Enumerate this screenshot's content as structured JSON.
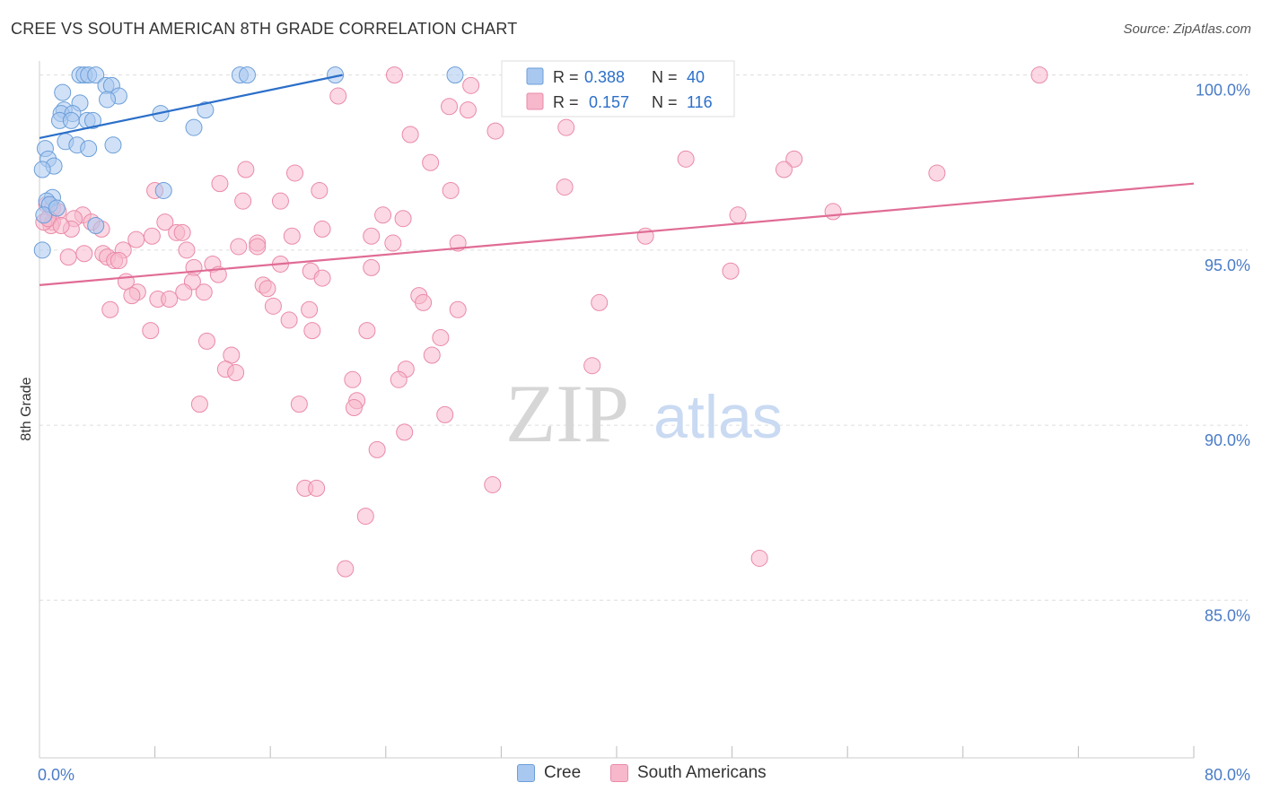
{
  "header": {
    "title": "CREE VS SOUTH AMERICAN 8TH GRADE CORRELATION CHART",
    "source": "Source: ZipAtlas.com"
  },
  "watermark": {
    "zip": "ZIP",
    "atlas": "atlas"
  },
  "colors": {
    "cree_fill": "#a9c8f0",
    "cree_stroke": "#6b9ed8",
    "cree_line": "#2b6fc9",
    "sa_fill": "#f7b8cc",
    "sa_stroke": "#ea8aa8",
    "sa_line": "#e06c95",
    "tick_text": "#4a7cc7",
    "grid": "#dddddd"
  },
  "stats_legend": {
    "cree": {
      "r_label": "R = ",
      "r_value": "0.388",
      "n_label": "N = ",
      "n_value": "40"
    },
    "sa": {
      "r_label": "R = ",
      "r_value": "0.157",
      "n_label": "N = ",
      "n_value": "116"
    }
  },
  "bottom_legend": {
    "cree": "Cree",
    "sa": "South Americans"
  },
  "chart_data": {
    "type": "scatter",
    "title": "CREE VS SOUTH AMERICAN 8TH GRADE CORRELATION CHART",
    "xlabel": "",
    "ylabel": "8th Grade",
    "xlim": [
      0,
      80
    ],
    "ylim": [
      80.5,
      100.4
    ],
    "x_tick_labels": [
      "0.0%",
      "80.0%"
    ],
    "y_ticks": [
      85,
      90,
      95,
      100
    ],
    "y_tick_labels": [
      "85.0%",
      "90.0%",
      "95.0%",
      "100.0%"
    ],
    "grid": true,
    "series": [
      {
        "name": "Cree",
        "R": 0.388,
        "N": 40,
        "trend": [
          [
            0,
            98.2
          ],
          [
            21,
            100.0
          ]
        ],
        "points": [
          [
            2.8,
            100
          ],
          [
            3.1,
            100
          ],
          [
            3.4,
            100
          ],
          [
            3.9,
            100
          ],
          [
            13.9,
            100
          ],
          [
            14.4,
            100
          ],
          [
            20.5,
            100
          ],
          [
            28.8,
            100
          ],
          [
            4.6,
            99.7
          ],
          [
            5.0,
            99.7
          ],
          [
            1.6,
            99.5
          ],
          [
            5.5,
            99.4
          ],
          [
            4.7,
            99.3
          ],
          [
            2.8,
            99.2
          ],
          [
            1.7,
            99.0
          ],
          [
            1.5,
            98.9
          ],
          [
            11.5,
            99.0
          ],
          [
            8.4,
            98.9
          ],
          [
            2.3,
            98.9
          ],
          [
            1.4,
            98.7
          ],
          [
            2.2,
            98.7
          ],
          [
            3.3,
            98.7
          ],
          [
            3.7,
            98.7
          ],
          [
            10.7,
            98.5
          ],
          [
            1.8,
            98.1
          ],
          [
            2.6,
            98.0
          ],
          [
            3.4,
            97.9
          ],
          [
            5.1,
            98.0
          ],
          [
            0.4,
            97.9
          ],
          [
            0.6,
            97.6
          ],
          [
            1.0,
            97.4
          ],
          [
            0.2,
            97.3
          ],
          [
            0.9,
            96.5
          ],
          [
            8.6,
            96.7
          ],
          [
            0.5,
            96.4
          ],
          [
            0.7,
            96.3
          ],
          [
            3.9,
            95.7
          ],
          [
            0.2,
            95.0
          ],
          [
            0.3,
            96.0
          ],
          [
            1.2,
            96.2
          ]
        ]
      },
      {
        "name": "South Americans",
        "R": 0.157,
        "N": 116,
        "trend": [
          [
            0,
            94.0
          ],
          [
            80,
            96.9
          ]
        ],
        "points": [
          [
            24.6,
            100
          ],
          [
            32.6,
            100
          ],
          [
            69.3,
            100
          ],
          [
            29.9,
            99.7
          ],
          [
            34.7,
            99.8
          ],
          [
            20.7,
            99.4
          ],
          [
            28.4,
            99.1
          ],
          [
            29.7,
            99.0
          ],
          [
            31.6,
            98.4
          ],
          [
            36.5,
            98.5
          ],
          [
            25.7,
            98.3
          ],
          [
            52.3,
            97.6
          ],
          [
            27.1,
            97.5
          ],
          [
            51.6,
            97.3
          ],
          [
            14.3,
            97.3
          ],
          [
            17.7,
            97.2
          ],
          [
            62.2,
            97.2
          ],
          [
            12.5,
            96.9
          ],
          [
            19.4,
            96.7
          ],
          [
            28.5,
            96.7
          ],
          [
            8.0,
            96.7
          ],
          [
            14.1,
            96.4
          ],
          [
            16.7,
            96.4
          ],
          [
            0.5,
            96.3
          ],
          [
            0.9,
            96.2
          ],
          [
            1.3,
            96.1
          ],
          [
            3.0,
            96.0
          ],
          [
            23.8,
            96.0
          ],
          [
            25.2,
            95.9
          ],
          [
            48.4,
            96.0
          ],
          [
            2.4,
            95.9
          ],
          [
            0.9,
            95.8
          ],
          [
            3.6,
            95.8
          ],
          [
            8.7,
            95.8
          ],
          [
            0.8,
            95.7
          ],
          [
            2.2,
            95.6
          ],
          [
            19.6,
            95.6
          ],
          [
            9.5,
            95.5
          ],
          [
            9.9,
            95.5
          ],
          [
            17.5,
            95.4
          ],
          [
            23.0,
            95.4
          ],
          [
            42.0,
            95.4
          ],
          [
            6.7,
            95.3
          ],
          [
            15.1,
            95.2
          ],
          [
            24.5,
            95.2
          ],
          [
            29.0,
            95.2
          ],
          [
            13.8,
            95.1
          ],
          [
            15.1,
            95.1
          ],
          [
            10.2,
            95.0
          ],
          [
            5.8,
            95.0
          ],
          [
            4.4,
            94.9
          ],
          [
            4.7,
            94.8
          ],
          [
            2.0,
            94.8
          ],
          [
            5.2,
            94.7
          ],
          [
            5.5,
            94.7
          ],
          [
            12.0,
            94.6
          ],
          [
            16.7,
            94.6
          ],
          [
            23.0,
            94.5
          ],
          [
            10.7,
            94.5
          ],
          [
            18.8,
            94.4
          ],
          [
            12.4,
            94.3
          ],
          [
            19.6,
            94.2
          ],
          [
            6.0,
            94.1
          ],
          [
            10.6,
            94.1
          ],
          [
            15.5,
            94.0
          ],
          [
            15.8,
            93.9
          ],
          [
            6.8,
            93.8
          ],
          [
            6.4,
            93.7
          ],
          [
            10.0,
            93.8
          ],
          [
            11.4,
            93.8
          ],
          [
            26.3,
            93.7
          ],
          [
            8.2,
            93.6
          ],
          [
            9.0,
            93.6
          ],
          [
            26.6,
            93.5
          ],
          [
            38.8,
            93.5
          ],
          [
            16.2,
            93.4
          ],
          [
            4.9,
            93.3
          ],
          [
            18.7,
            93.3
          ],
          [
            29.0,
            93.3
          ],
          [
            17.3,
            93.0
          ],
          [
            18.9,
            92.7
          ],
          [
            22.7,
            92.7
          ],
          [
            7.7,
            92.7
          ],
          [
            27.8,
            92.5
          ],
          [
            11.6,
            92.4
          ],
          [
            13.3,
            92.0
          ],
          [
            27.2,
            92.0
          ],
          [
            12.9,
            91.6
          ],
          [
            13.6,
            91.5
          ],
          [
            25.4,
            91.6
          ],
          [
            38.3,
            91.7
          ],
          [
            21.7,
            91.3
          ],
          [
            24.9,
            91.3
          ],
          [
            22.0,
            90.7
          ],
          [
            11.1,
            90.6
          ],
          [
            18.0,
            90.6
          ],
          [
            21.8,
            90.5
          ],
          [
            28.1,
            90.3
          ],
          [
            25.3,
            89.8
          ],
          [
            23.4,
            89.3
          ],
          [
            31.4,
            88.3
          ],
          [
            18.4,
            88.2
          ],
          [
            19.2,
            88.2
          ],
          [
            22.6,
            87.4
          ],
          [
            49.9,
            86.2
          ],
          [
            21.2,
            85.9
          ],
          [
            0.3,
            95.8
          ],
          [
            0.6,
            95.9
          ],
          [
            1.5,
            95.7
          ],
          [
            4.3,
            95.6
          ],
          [
            7.8,
            95.4
          ],
          [
            3.1,
            94.9
          ],
          [
            36.4,
            96.8
          ],
          [
            44.8,
            97.6
          ],
          [
            55.0,
            96.1
          ],
          [
            47.9,
            94.4
          ]
        ]
      }
    ]
  }
}
